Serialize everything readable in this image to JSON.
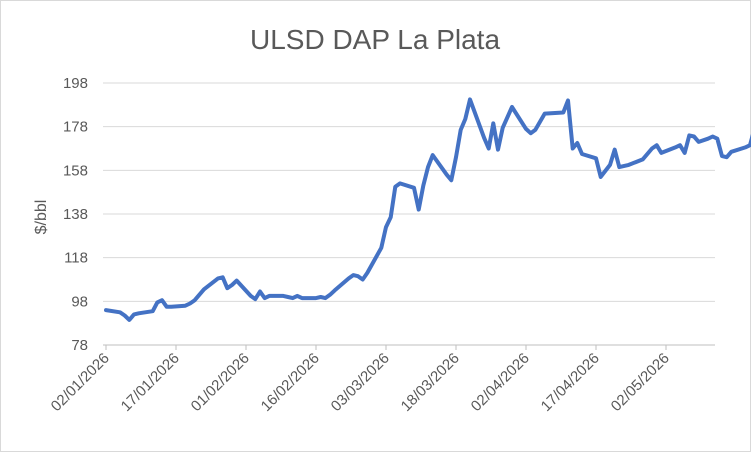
{
  "chart_data": {
    "type": "line",
    "title": "ULSD DAP La Plata",
    "xlabel": "",
    "ylabel": "$/bbl",
    "ylim": [
      78,
      198
    ],
    "yticks": [
      78,
      98,
      118,
      138,
      158,
      178,
      198
    ],
    "xlim": [
      "2026-01-02",
      "2026-05-17"
    ],
    "xticks": [
      {
        "date": "2026-01-02",
        "label": "02/01/2026"
      },
      {
        "date": "2026-01-17",
        "label": "17/01/2026"
      },
      {
        "date": "2026-02-01",
        "label": "01/02/2026"
      },
      {
        "date": "2026-02-16",
        "label": "16/02/2026"
      },
      {
        "date": "2026-03-03",
        "label": "03/03/2026"
      },
      {
        "date": "2026-03-18",
        "label": "18/03/2026"
      },
      {
        "date": "2026-04-02",
        "label": "02/04/2026"
      },
      {
        "date": "2026-04-17",
        "label": "17/04/2026"
      },
      {
        "date": "2026-05-02",
        "label": "02/05/2026"
      }
    ],
    "grid": true,
    "color": "#4472c4",
    "series": [
      {
        "name": "",
        "points": [
          [
            "2026-01-02",
            94.0
          ],
          [
            "2026-01-05",
            93.0
          ],
          [
            "2026-01-06",
            91.5
          ],
          [
            "2026-01-07",
            89.5
          ],
          [
            "2026-01-08",
            92.0
          ],
          [
            "2026-01-09",
            92.5
          ],
          [
            "2026-01-12",
            93.5
          ],
          [
            "2026-01-13",
            97.5
          ],
          [
            "2026-01-14",
            98.5
          ],
          [
            "2026-01-15",
            95.5
          ],
          [
            "2026-01-16",
            95.5
          ],
          [
            "2026-01-19",
            96.0
          ],
          [
            "2026-01-20",
            97.0
          ],
          [
            "2026-01-21",
            98.5
          ],
          [
            "2026-01-22",
            101.0
          ],
          [
            "2026-01-23",
            103.5
          ],
          [
            "2026-01-26",
            108.5
          ],
          [
            "2026-01-27",
            109.0
          ],
          [
            "2026-01-28",
            104.0
          ],
          [
            "2026-01-29",
            105.5
          ],
          [
            "2026-01-30",
            107.5
          ],
          [
            "2026-02-02",
            100.5
          ],
          [
            "2026-02-03",
            99.0
          ],
          [
            "2026-02-04",
            102.5
          ],
          [
            "2026-02-05",
            99.5
          ],
          [
            "2026-02-06",
            100.5
          ],
          [
            "2026-02-09",
            100.5
          ],
          [
            "2026-02-10",
            100.0
          ],
          [
            "2026-02-11",
            99.5
          ],
          [
            "2026-02-12",
            100.5
          ],
          [
            "2026-02-13",
            99.5
          ],
          [
            "2026-02-16",
            99.5
          ],
          [
            "2026-02-17",
            100.0
          ],
          [
            "2026-02-18",
            99.5
          ],
          [
            "2026-02-19",
            101.0
          ],
          [
            "2026-02-20",
            103.0
          ],
          [
            "2026-02-23",
            108.5
          ],
          [
            "2026-02-24",
            110.0
          ],
          [
            "2026-02-25",
            109.5
          ],
          [
            "2026-02-26",
            108.0
          ],
          [
            "2026-02-27",
            111.0
          ],
          [
            "2026-03-02",
            122.5
          ],
          [
            "2026-03-03",
            132.0
          ],
          [
            "2026-03-04",
            136.5
          ],
          [
            "2026-03-05",
            150.5
          ],
          [
            "2026-03-06",
            152.0
          ],
          [
            "2026-03-09",
            150.0
          ],
          [
            "2026-03-10",
            140.0
          ],
          [
            "2026-03-11",
            151.0
          ],
          [
            "2026-03-12",
            159.5
          ],
          [
            "2026-03-13",
            165.0
          ],
          [
            "2026-03-16",
            156.0
          ],
          [
            "2026-03-17",
            153.5
          ],
          [
            "2026-03-18",
            164.0
          ],
          [
            "2026-03-19",
            176.5
          ],
          [
            "2026-03-20",
            181.5
          ],
          [
            "2026-03-21",
            190.5
          ],
          [
            "2026-03-24",
            173.0
          ],
          [
            "2026-03-25",
            168.0
          ],
          [
            "2026-03-26",
            179.5
          ],
          [
            "2026-03-27",
            167.5
          ],
          [
            "2026-03-28",
            177.5
          ],
          [
            "2026-03-30",
            187.0
          ],
          [
            "2026-04-02",
            177.0
          ],
          [
            "2026-04-03",
            175.0
          ],
          [
            "2026-04-04",
            176.5
          ],
          [
            "2026-04-06",
            184.0
          ],
          [
            "2026-04-10",
            184.5
          ],
          [
            "2026-04-11",
            190.0
          ],
          [
            "2026-04-12",
            168.0
          ],
          [
            "2026-04-13",
            170.5
          ],
          [
            "2026-04-14",
            165.5
          ],
          [
            "2026-04-17",
            163.5
          ],
          [
            "2026-04-18",
            155.0
          ],
          [
            "2026-04-20",
            160.5
          ],
          [
            "2026-04-21",
            167.5
          ],
          [
            "2026-04-22",
            159.5
          ],
          [
            "2026-04-24",
            160.5
          ],
          [
            "2026-04-27",
            163.0
          ],
          [
            "2026-04-29",
            168.0
          ],
          [
            "2026-04-30",
            169.5
          ],
          [
            "2026-05-01",
            166.0
          ],
          [
            "2026-05-04",
            168.5
          ],
          [
            "2026-05-05",
            169.5
          ],
          [
            "2026-05-06",
            166.0
          ],
          [
            "2026-05-07",
            174.0
          ],
          [
            "2026-05-08",
            173.5
          ],
          [
            "2026-05-09",
            171.0
          ],
          [
            "2026-05-11",
            172.5
          ],
          [
            "2026-05-12",
            173.5
          ],
          [
            "2026-05-13",
            172.5
          ],
          [
            "2026-05-14",
            164.5
          ],
          [
            "2026-05-15",
            164.0
          ],
          [
            "2026-05-16",
            166.5
          ],
          [
            "2026-05-19",
            168.5
          ],
          [
            "2026-05-20",
            169.5
          ],
          [
            "2026-05-21",
            177.5
          ]
        ]
      }
    ]
  }
}
